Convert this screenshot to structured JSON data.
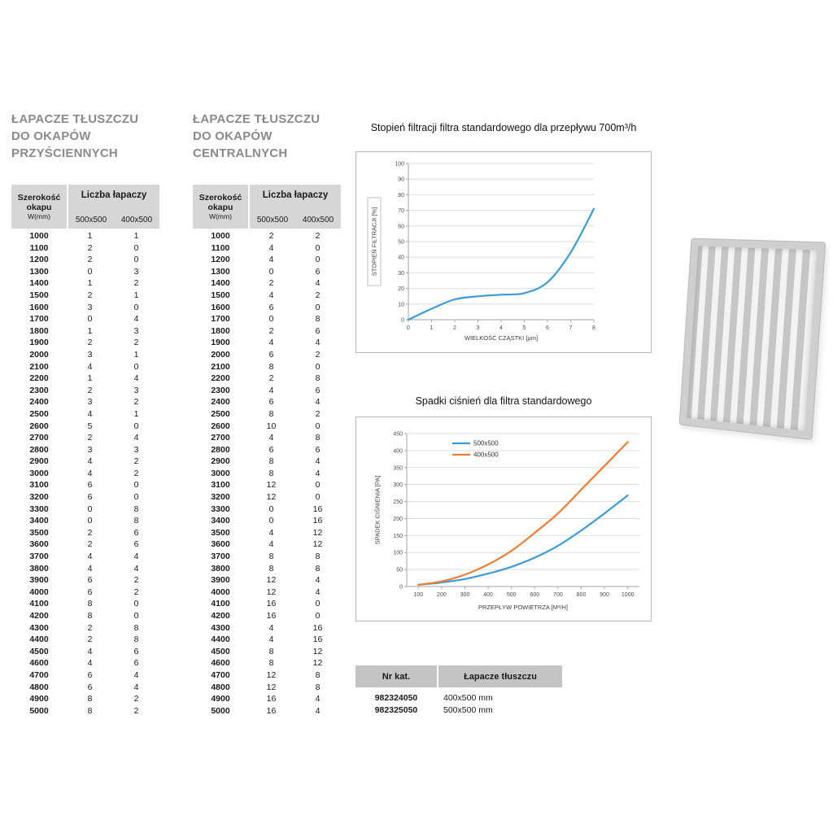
{
  "tables": [
    {
      "title_lines": [
        "ŁAPACZE TŁUSZCZU",
        "DO OKAPÓW",
        "PRZYŚCIENNYCH"
      ],
      "header": {
        "width_label_1": "Szerokość",
        "width_label_2": "okapu",
        "width_label_3": "W(mm)",
        "count_label": "Liczba łapaczy",
        "sub_col_1": "500x500",
        "sub_col_2": "400x500"
      },
      "rows": [
        [
          1000,
          1,
          1
        ],
        [
          1100,
          2,
          0
        ],
        [
          1200,
          2,
          0
        ],
        [
          1300,
          0,
          3
        ],
        [
          1400,
          1,
          2
        ],
        [
          1500,
          2,
          1
        ],
        [
          1600,
          3,
          0
        ],
        [
          1700,
          0,
          4
        ],
        [
          1800,
          1,
          3
        ],
        [
          1900,
          2,
          2
        ],
        [
          2000,
          3,
          1
        ],
        [
          2100,
          4,
          0
        ],
        [
          2200,
          1,
          4
        ],
        [
          2300,
          2,
          3
        ],
        [
          2400,
          3,
          2
        ],
        [
          2500,
          4,
          1
        ],
        [
          2600,
          5,
          0
        ],
        [
          2700,
          2,
          4
        ],
        [
          2800,
          3,
          3
        ],
        [
          2900,
          4,
          2
        ],
        [
          3000,
          4,
          2
        ],
        [
          3100,
          6,
          0
        ],
        [
          3200,
          6,
          0
        ],
        [
          3300,
          0,
          8
        ],
        [
          3400,
          0,
          8
        ],
        [
          3500,
          2,
          6
        ],
        [
          3600,
          2,
          6
        ],
        [
          3700,
          4,
          4
        ],
        [
          3800,
          4,
          4
        ],
        [
          3900,
          6,
          2
        ],
        [
          4000,
          6,
          2
        ],
        [
          4100,
          8,
          0
        ],
        [
          4200,
          8,
          0
        ],
        [
          4300,
          2,
          8
        ],
        [
          4400,
          2,
          8
        ],
        [
          4500,
          4,
          6
        ],
        [
          4600,
          4,
          6
        ],
        [
          4700,
          6,
          4
        ],
        [
          4800,
          6,
          4
        ],
        [
          4900,
          8,
          2
        ],
        [
          5000,
          8,
          2
        ]
      ]
    },
    {
      "title_lines": [
        "ŁAPACZE TŁUSZCZU",
        "DO OKAPÓW",
        "CENTRALNYCH"
      ],
      "header": {
        "width_label_1": "Szerokość",
        "width_label_2": "okapu",
        "width_label_3": "W(mm)",
        "count_label": "Liczba łapaczy",
        "sub_col_1": "500x500",
        "sub_col_2": "400x500"
      },
      "rows": [
        [
          1000,
          2,
          2
        ],
        [
          1100,
          4,
          0
        ],
        [
          1200,
          4,
          0
        ],
        [
          1300,
          0,
          6
        ],
        [
          1400,
          2,
          4
        ],
        [
          1500,
          4,
          2
        ],
        [
          1600,
          6,
          0
        ],
        [
          1700,
          0,
          8
        ],
        [
          1800,
          2,
          6
        ],
        [
          1900,
          4,
          4
        ],
        [
          2000,
          6,
          2
        ],
        [
          2100,
          8,
          0
        ],
        [
          2200,
          2,
          8
        ],
        [
          2300,
          4,
          6
        ],
        [
          2400,
          6,
          4
        ],
        [
          2500,
          8,
          2
        ],
        [
          2600,
          10,
          0
        ],
        [
          2700,
          4,
          8
        ],
        [
          2800,
          6,
          6
        ],
        [
          2900,
          8,
          4
        ],
        [
          3000,
          8,
          4
        ],
        [
          3100,
          12,
          0
        ],
        [
          3200,
          12,
          0
        ],
        [
          3300,
          0,
          16
        ],
        [
          3400,
          0,
          16
        ],
        [
          3500,
          4,
          12
        ],
        [
          3600,
          4,
          12
        ],
        [
          3700,
          8,
          8
        ],
        [
          3800,
          8,
          8
        ],
        [
          3900,
          12,
          4
        ],
        [
          4000,
          12,
          4
        ],
        [
          4100,
          16,
          0
        ],
        [
          4200,
          16,
          0
        ],
        [
          4300,
          4,
          16
        ],
        [
          4400,
          4,
          16
        ],
        [
          4500,
          8,
          12
        ],
        [
          4600,
          8,
          12
        ],
        [
          4700,
          12,
          8
        ],
        [
          4800,
          12,
          8
        ],
        [
          4900,
          16,
          4
        ],
        [
          5000,
          16,
          4
        ]
      ]
    }
  ],
  "chart_data": [
    {
      "type": "line",
      "title": "Stopień filtracji filtra standardowego dla przepływu 700m³/h",
      "xlabel": "WIELKOŚĆ CZĄSTKI [μm]",
      "ylabel": "STOPIEŃ FILTRACJI [%]",
      "xlim": [
        0,
        8
      ],
      "ylim": [
        0,
        100
      ],
      "xticks": [
        0,
        1,
        2,
        3,
        4,
        5,
        6,
        7,
        8
      ],
      "yticks": [
        0,
        10,
        20,
        30,
        40,
        50,
        60,
        70,
        80,
        90,
        100
      ],
      "grid": true,
      "legend_position": "none",
      "series": [
        {
          "name": "",
          "color": "#3a9bd5",
          "x": [
            0,
            1,
            2,
            3,
            4,
            5,
            6,
            7,
            8
          ],
          "y": [
            0,
            7,
            13,
            15,
            16,
            17,
            24,
            43,
            71
          ]
        }
      ]
    },
    {
      "type": "line",
      "title": "Spadki ciśnień dla filtra standardowego",
      "xlabel": "PRZEPŁYW POWIETRZA [M³/H]",
      "ylabel": "SPADEK CIŚNIENIA [PA]",
      "xlim": [
        100,
        1000
      ],
      "ylim": [
        0,
        450
      ],
      "xticks": [
        100,
        200,
        300,
        400,
        500,
        600,
        700,
        800,
        900,
        1000
      ],
      "yticks": [
        0,
        50,
        100,
        150,
        200,
        250,
        300,
        350,
        400,
        450
      ],
      "grid": true,
      "legend_position": "top-center",
      "series": [
        {
          "name": "500x500",
          "color": "#3a9bd5",
          "x": [
            100,
            200,
            300,
            400,
            500,
            600,
            700,
            800,
            900,
            1000
          ],
          "y": [
            5,
            12,
            22,
            38,
            58,
            85,
            120,
            165,
            215,
            268
          ]
        },
        {
          "name": "400x500",
          "color": "#ed7d31",
          "x": [
            100,
            200,
            300,
            400,
            500,
            600,
            700,
            800,
            900,
            1000
          ],
          "y": [
            5,
            15,
            35,
            65,
            105,
            158,
            215,
            285,
            355,
            425
          ]
        }
      ]
    }
  ],
  "catalog": {
    "header": [
      "Nr kat.",
      "Łapacze tłuszczu"
    ],
    "rows": [
      [
        "982324050",
        "400x500 mm"
      ],
      [
        "982325050",
        "500x500 mm"
      ]
    ]
  },
  "illustration": {
    "icon": "grease-filter-baffle-illustration"
  }
}
